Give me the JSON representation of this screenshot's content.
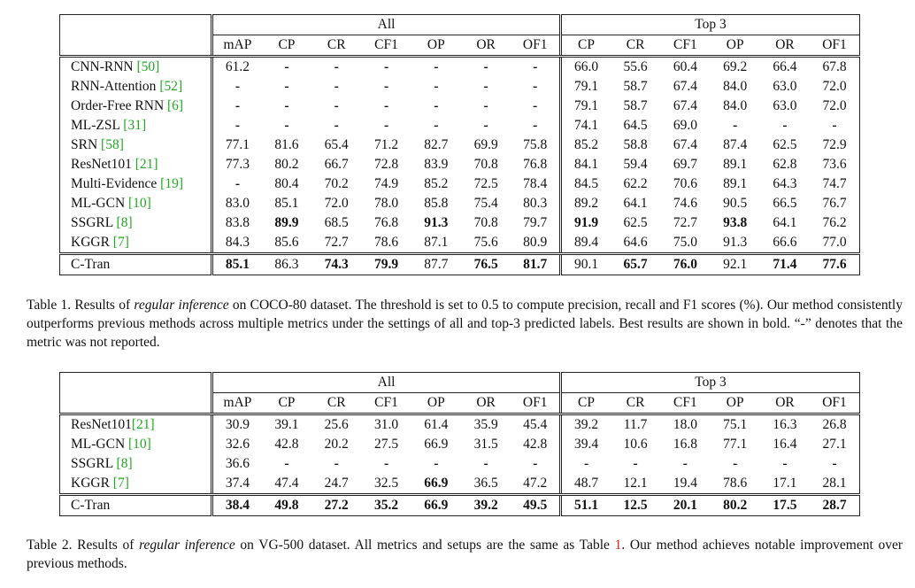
{
  "table1": {
    "groups": {
      "all": "All",
      "top3": "Top 3"
    },
    "columns_all": [
      "mAP",
      "CP",
      "CR",
      "CF1",
      "OP",
      "OR",
      "OF1"
    ],
    "columns_top3": [
      "CP",
      "CR",
      "CF1",
      "OP",
      "OR",
      "OF1"
    ],
    "rows": [
      {
        "name": "CNN-RNN ",
        "cite": "[50]",
        "all": [
          "61.2",
          "-",
          "-",
          "-",
          "-",
          "-",
          "-"
        ],
        "top3": [
          "66.0",
          "55.6",
          "60.4",
          "69.2",
          "66.4",
          "67.8"
        ]
      },
      {
        "name": "RNN-Attention ",
        "cite": "[52]",
        "all": [
          "-",
          "-",
          "-",
          "-",
          "-",
          "-",
          "-"
        ],
        "top3": [
          "79.1",
          "58.7",
          "67.4",
          "84.0",
          "63.0",
          "72.0"
        ]
      },
      {
        "name": "Order-Free RNN ",
        "cite": "[6]",
        "all": [
          "-",
          "-",
          "-",
          "-",
          "-",
          "-",
          "-"
        ],
        "top3": [
          "79.1",
          "58.7",
          "67.4",
          "84.0",
          "63.0",
          "72.0"
        ]
      },
      {
        "name": "ML-ZSL ",
        "cite": "[31]",
        "all": [
          "-",
          "-",
          "-",
          "-",
          "-",
          "-",
          "-"
        ],
        "top3": [
          "74.1",
          "64.5",
          "69.0",
          "-",
          "-",
          "-"
        ]
      },
      {
        "name": "SRN ",
        "cite": "[58]",
        "all": [
          "77.1",
          "81.6",
          "65.4",
          "71.2",
          "82.7",
          "69.9",
          "75.8"
        ],
        "top3": [
          "85.2",
          "58.8",
          "67.4",
          "87.4",
          "62.5",
          "72.9"
        ]
      },
      {
        "name": "ResNet101 ",
        "cite": "[21]",
        "all": [
          "77.3",
          "80.2",
          "66.7",
          "72.8",
          "83.9",
          "70.8",
          "76.8"
        ],
        "top3": [
          "84.1",
          "59.4",
          "69.7",
          "89.1",
          "62.8",
          "73.6"
        ]
      },
      {
        "name": "Multi-Evidence ",
        "cite": "[19]",
        "all": [
          "-",
          "80.4",
          "70.2",
          "74.9",
          "85.2",
          "72.5",
          "78.4"
        ],
        "top3": [
          "84.5",
          "62.2",
          "70.6",
          "89.1",
          "64.3",
          "74.7"
        ]
      },
      {
        "name": "ML-GCN ",
        "cite": "[10]",
        "all": [
          "83.0",
          "85.1",
          "72.0",
          "78.0",
          "85.8",
          "75.4",
          "80.3"
        ],
        "top3": [
          "89.2",
          "64.1",
          "74.6",
          "90.5",
          "66.5",
          "76.7"
        ]
      },
      {
        "name": "SSGRL ",
        "cite": "[8]",
        "all": [
          "83.8",
          "89.9",
          "68.5",
          "76.8",
          "91.3",
          "70.8",
          "79.7"
        ],
        "top3": [
          "91.9",
          "62.5",
          "72.7",
          "93.8",
          "64.1",
          "76.2"
        ],
        "bold_all": [
          1,
          4
        ],
        "bold_top3": [
          0,
          3
        ]
      },
      {
        "name": "KGGR ",
        "cite": "[7]",
        "all": [
          "84.3",
          "85.6",
          "72.7",
          "78.6",
          "87.1",
          "75.6",
          "80.9"
        ],
        "top3": [
          "89.4",
          "64.6",
          "75.0",
          "91.3",
          "66.6",
          "77.0"
        ]
      }
    ],
    "final": {
      "name": "C-Tran",
      "all": [
        "85.1",
        "86.3",
        "74.3",
        "79.9",
        "87.7",
        "76.5",
        "81.7"
      ],
      "top3": [
        "90.1",
        "65.7",
        "76.0",
        "92.1",
        "71.4",
        "77.6"
      ],
      "bold_all": [
        0,
        2,
        3,
        5,
        6
      ],
      "bold_top3": [
        1,
        2,
        4,
        5
      ]
    }
  },
  "caption1": {
    "prefix": "Table 1. Results of ",
    "emph": "regular inference",
    "rest": " on COCO-80 dataset. The threshold is set to 0.5 to compute precision, recall and F1 scores (%). Our method consistently outperforms previous methods across multiple metrics under the settings of all and top-3 predicted labels. Best results are shown in bold. “-” denotes that the metric was not reported."
  },
  "table2": {
    "groups": {
      "all": "All",
      "top3": "Top 3"
    },
    "columns_all": [
      "mAP",
      "CP",
      "CR",
      "CF1",
      "OP",
      "OR",
      "OF1"
    ],
    "columns_top3": [
      "CP",
      "CR",
      "CF1",
      "OP",
      "OR",
      "OF1"
    ],
    "rows": [
      {
        "name": "ResNet101",
        "cite": "[21]",
        "all": [
          "30.9",
          "39.1",
          "25.6",
          "31.0",
          "61.4",
          "35.9",
          "45.4"
        ],
        "top3": [
          "39.2",
          "11.7",
          "18.0",
          "75.1",
          "16.3",
          "26.8"
        ]
      },
      {
        "name": "ML-GCN ",
        "cite": "[10]",
        "all": [
          "32.6",
          "42.8",
          "20.2",
          "27.5",
          "66.9",
          "31.5",
          "42.8"
        ],
        "top3": [
          "39.4",
          "10.6",
          "16.8",
          "77.1",
          "16.4",
          "27.1"
        ]
      },
      {
        "name": "SSGRL ",
        "cite": "[8]",
        "all": [
          "36.6",
          "-",
          "-",
          "-",
          "-",
          "-",
          "-"
        ],
        "top3": [
          "-",
          "-",
          "-",
          "-",
          "-",
          "-"
        ]
      },
      {
        "name": "KGGR ",
        "cite": "[7]",
        "all": [
          "37.4",
          "47.4",
          "24.7",
          "32.5",
          "66.9",
          "36.5",
          "47.2"
        ],
        "top3": [
          "48.7",
          "12.1",
          "19.4",
          "78.6",
          "17.1",
          "28.1"
        ],
        "bold_all": [
          4
        ]
      }
    ],
    "final": {
      "name": "C-Tran",
      "all": [
        "38.4",
        "49.8",
        "27.2",
        "35.2",
        "66.9",
        "39.2",
        "49.5"
      ],
      "top3": [
        "51.1",
        "12.5",
        "20.1",
        "80.2",
        "17.5",
        "28.7"
      ],
      "bold_all": [
        0,
        1,
        2,
        3,
        4,
        5,
        6
      ],
      "bold_top3": [
        0,
        1,
        2,
        3,
        4,
        5
      ]
    }
  },
  "caption2": {
    "prefix": "Table 2. Results of ",
    "emph": "regular inference",
    "mid": " on VG-500 dataset. All metrics and setups are the same as Table ",
    "ref": "1",
    "rest": ". Our method achieves notable improvement over previous methods."
  }
}
